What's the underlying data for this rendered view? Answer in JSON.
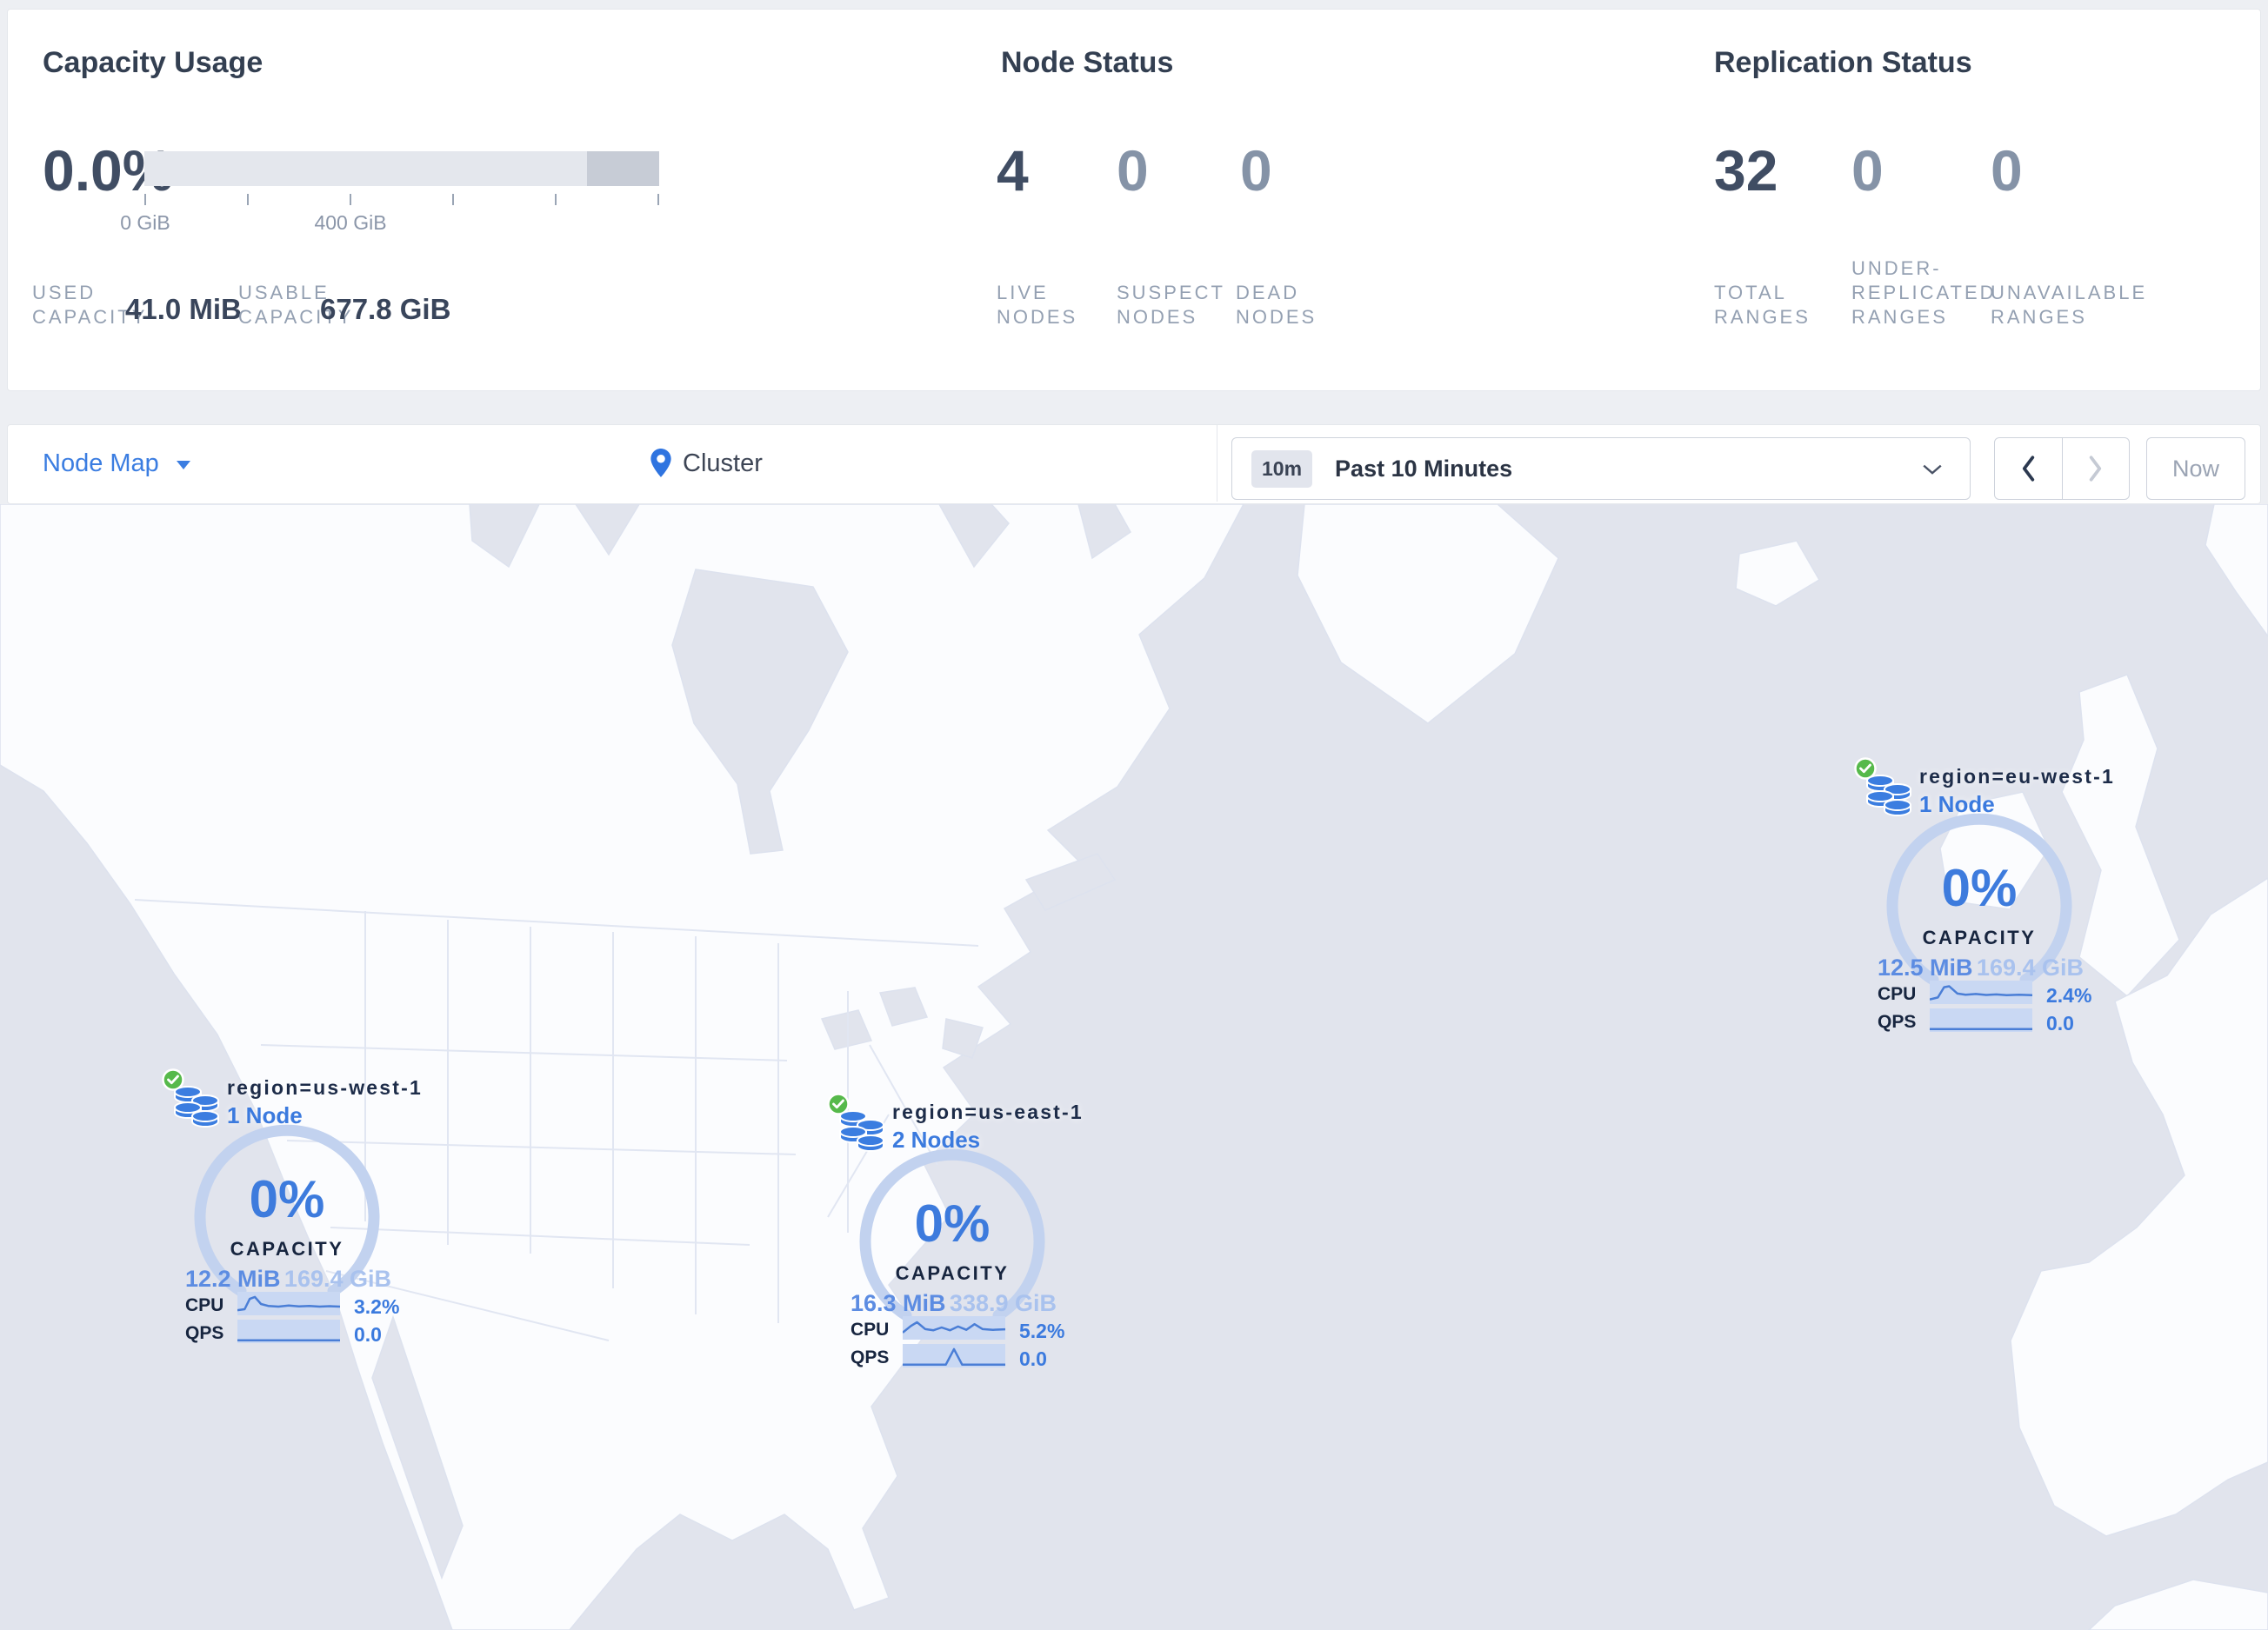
{
  "stats": {
    "capacity": {
      "title": "Capacity Usage",
      "percent": "0.0%",
      "tick_label_start": "0 GiB",
      "tick_label_mid": "400 GiB",
      "used_label": [
        "USED",
        "CAPACITY"
      ],
      "used_value": "41.0 MiB",
      "usable_label": [
        "USABLE",
        "CAPACITY"
      ],
      "usable_value": "677.8 GiB"
    },
    "node_status": {
      "title": "Node Status",
      "items": [
        {
          "value": "4",
          "label": [
            "LIVE",
            "NODES"
          ]
        },
        {
          "value": "0",
          "label": [
            "SUSPECT",
            "NODES"
          ]
        },
        {
          "value": "0",
          "label": [
            "DEAD",
            "NODES"
          ]
        }
      ]
    },
    "replication": {
      "title": "Replication Status",
      "items": [
        {
          "value": "32",
          "label2": [
            "TOTAL",
            "RANGES"
          ]
        },
        {
          "value": "0",
          "label3": [
            "UNDER-",
            "REPLICATED",
            "RANGES"
          ]
        },
        {
          "value": "0",
          "label2b": [
            "UNAVAILABLE",
            "RANGES"
          ]
        }
      ]
    }
  },
  "toolbar": {
    "view_label": "Node Map",
    "breadcrumb": "Cluster",
    "time_badge": "10m",
    "time_value": "Past 10 Minutes",
    "now_label": "Now"
  },
  "map": {
    "regions": [
      {
        "name": "region=us-west-1",
        "nodes": "1 Node",
        "percent": "0%",
        "capacity_label": "CAPACITY",
        "used": "12.2 MiB",
        "capacity": "169.4 GiB",
        "cpu_label": "CPU",
        "cpu_value": "3.2%",
        "qps_label": "QPS",
        "qps_value": "0.0",
        "cpu_spark": [
          [
            0,
            0.78
          ],
          [
            0.07,
            0.74
          ],
          [
            0.12,
            0.3
          ],
          [
            0.17,
            0.22
          ],
          [
            0.23,
            0.52
          ],
          [
            0.3,
            0.6
          ],
          [
            0.4,
            0.63
          ],
          [
            0.5,
            0.58
          ],
          [
            0.6,
            0.62
          ],
          [
            0.7,
            0.6
          ],
          [
            0.8,
            0.63
          ],
          [
            0.9,
            0.61
          ],
          [
            1,
            0.63
          ]
        ],
        "qps_spark": [
          [
            0,
            0.88
          ],
          [
            1,
            0.88
          ]
        ]
      },
      {
        "name": "region=us-east-1",
        "nodes": "2 Nodes",
        "percent": "0%",
        "capacity_label": "CAPACITY",
        "used": "16.3 MiB",
        "capacity": "338.9 GiB",
        "cpu_label": "CPU",
        "cpu_value": "5.2%",
        "qps_label": "QPS",
        "qps_value": "0.0",
        "cpu_spark": [
          [
            0,
            0.7
          ],
          [
            0.08,
            0.42
          ],
          [
            0.14,
            0.26
          ],
          [
            0.22,
            0.55
          ],
          [
            0.3,
            0.6
          ],
          [
            0.38,
            0.48
          ],
          [
            0.46,
            0.6
          ],
          [
            0.54,
            0.44
          ],
          [
            0.62,
            0.58
          ],
          [
            0.7,
            0.34
          ],
          [
            0.78,
            0.55
          ],
          [
            0.88,
            0.58
          ],
          [
            1,
            0.56
          ]
        ],
        "qps_spark": [
          [
            0,
            0.88
          ],
          [
            0.42,
            0.88
          ],
          [
            0.5,
            0.22
          ],
          [
            0.58,
            0.88
          ],
          [
            1,
            0.88
          ]
        ]
      },
      {
        "name": "region=eu-west-1",
        "nodes": "1 Node",
        "percent": "0%",
        "capacity_label": "CAPACITY",
        "used": "12.5 MiB",
        "capacity": "169.4 GiB",
        "cpu_label": "CPU",
        "cpu_value": "2.4%",
        "qps_label": "QPS",
        "qps_value": "0.0",
        "cpu_spark": [
          [
            0,
            0.8
          ],
          [
            0.08,
            0.72
          ],
          [
            0.14,
            0.28
          ],
          [
            0.19,
            0.24
          ],
          [
            0.27,
            0.55
          ],
          [
            0.35,
            0.6
          ],
          [
            0.45,
            0.57
          ],
          [
            0.55,
            0.61
          ],
          [
            0.65,
            0.59
          ],
          [
            0.75,
            0.62
          ],
          [
            0.87,
            0.6
          ],
          [
            1,
            0.62
          ]
        ],
        "qps_spark": [
          [
            0,
            0.88
          ],
          [
            1,
            0.88
          ]
        ]
      }
    ]
  },
  "colors": {
    "accent_blue": "#3b7de0",
    "status_green": "#56b94b",
    "water": "#e1e4ed",
    "land": "#fbfcfe",
    "gauge_arc": "#c2d2ef",
    "spark_bg": "#c9d8f3",
    "spark_line": "#4a7ed6"
  }
}
